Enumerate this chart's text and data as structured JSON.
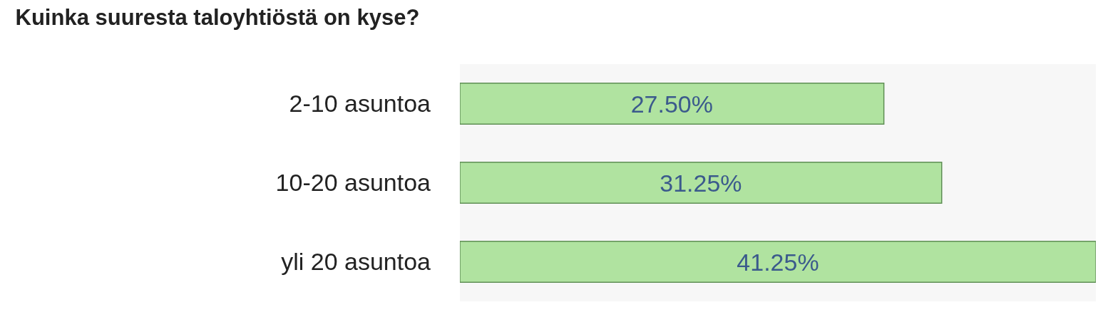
{
  "chart_data": {
    "type": "bar",
    "orientation": "horizontal",
    "title": "Kuinka suuresta taloyhtiöstä on kyse?",
    "categories": [
      "2-10 asuntoa",
      "10-20 asuntoa",
      "yli 20 asuntoa"
    ],
    "values": [
      27.5,
      31.25,
      41.25
    ],
    "value_labels": [
      "27.50%",
      "31.25%",
      "41.25%"
    ],
    "color": "#b0e3a0"
  }
}
